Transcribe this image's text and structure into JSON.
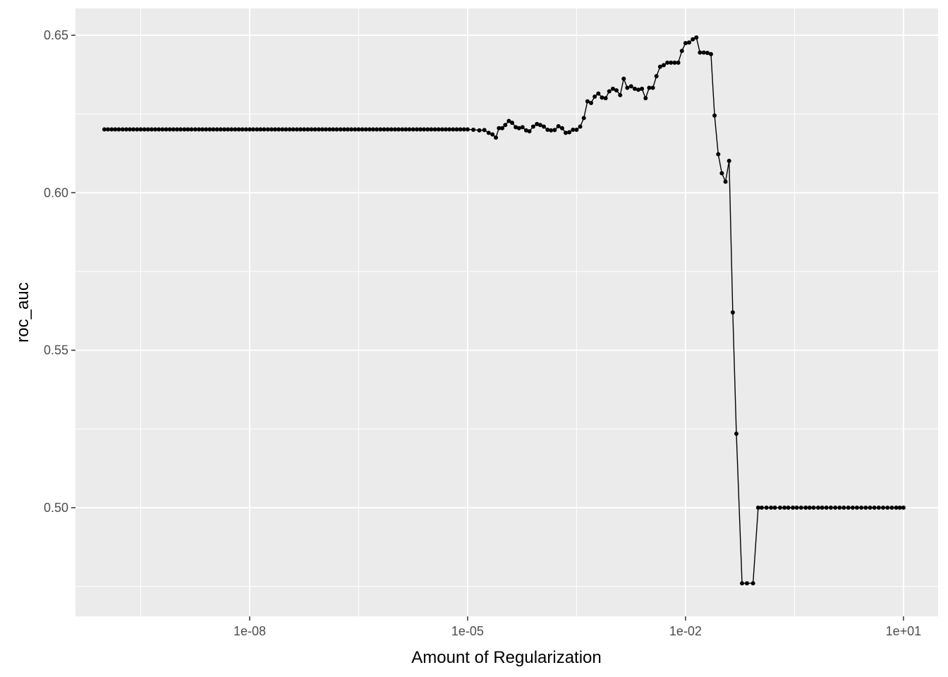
{
  "chart_data": {
    "type": "line",
    "title": "",
    "xlabel": "Amount of Regularization",
    "ylabel": "roc_auc",
    "x_scale": "log10",
    "xlim": [
      4e-11,
      30
    ],
    "ylim": [
      0.4655,
      0.6585
    ],
    "x_ticks": [
      1e-08,
      1e-05,
      0.01,
      10
    ],
    "x_tick_labels": [
      "1e-08",
      "1e-05",
      "1e-02",
      "1e+01"
    ],
    "y_ticks": [
      0.5,
      0.55,
      0.6,
      0.65
    ],
    "y_tick_labels": [
      "0.50",
      "0.55",
      "0.60",
      "0.65"
    ],
    "grid": true,
    "legend": "none",
    "colors": {
      "panel": "#ebebeb",
      "grid": "#ffffff",
      "series": "#000000"
    },
    "series": [
      {
        "points": [
          [
            1e-10,
            0.6201
          ],
          [
            1.12e-10,
            0.6201
          ],
          [
            1.26e-10,
            0.6201
          ],
          [
            1.41e-10,
            0.6201
          ],
          [
            1.58e-10,
            0.6201
          ],
          [
            1.78e-10,
            0.6201
          ],
          [
            2e-10,
            0.6201
          ],
          [
            2.24e-10,
            0.6201
          ],
          [
            2.51e-10,
            0.6201
          ],
          [
            2.82e-10,
            0.6201
          ],
          [
            3.16e-10,
            0.6201
          ],
          [
            3.55e-10,
            0.6201
          ],
          [
            3.98e-10,
            0.6201
          ],
          [
            4.47e-10,
            0.6201
          ],
          [
            5.01e-10,
            0.6201
          ],
          [
            5.62e-10,
            0.6201
          ],
          [
            6.31e-10,
            0.6201
          ],
          [
            7.08e-10,
            0.6201
          ],
          [
            7.94e-10,
            0.6201
          ],
          [
            8.91e-10,
            0.6201
          ],
          [
            1e-09,
            0.6201
          ],
          [
            1.12e-09,
            0.6201
          ],
          [
            1.26e-09,
            0.6201
          ],
          [
            1.41e-09,
            0.6201
          ],
          [
            1.58e-09,
            0.6201
          ],
          [
            1.78e-09,
            0.6201
          ],
          [
            2e-09,
            0.6201
          ],
          [
            2.24e-09,
            0.6201
          ],
          [
            2.51e-09,
            0.6201
          ],
          [
            2.82e-09,
            0.6201
          ],
          [
            3.16e-09,
            0.6201
          ],
          [
            3.55e-09,
            0.6201
          ],
          [
            3.98e-09,
            0.6201
          ],
          [
            4.47e-09,
            0.6201
          ],
          [
            5.01e-09,
            0.6201
          ],
          [
            5.62e-09,
            0.6201
          ],
          [
            6.31e-09,
            0.6201
          ],
          [
            7.08e-09,
            0.6201
          ],
          [
            7.94e-09,
            0.6201
          ],
          [
            8.91e-09,
            0.6201
          ],
          [
            1e-08,
            0.6201
          ],
          [
            1.12e-08,
            0.6201
          ],
          [
            1.26e-08,
            0.6201
          ],
          [
            1.41e-08,
            0.6201
          ],
          [
            1.58e-08,
            0.6201
          ],
          [
            1.78e-08,
            0.6201
          ],
          [
            2e-08,
            0.6201
          ],
          [
            2.24e-08,
            0.6201
          ],
          [
            2.51e-08,
            0.6201
          ],
          [
            2.82e-08,
            0.6201
          ],
          [
            3.16e-08,
            0.6201
          ],
          [
            3.55e-08,
            0.6201
          ],
          [
            3.98e-08,
            0.6201
          ],
          [
            4.47e-08,
            0.6201
          ],
          [
            5.01e-08,
            0.6201
          ],
          [
            5.62e-08,
            0.6201
          ],
          [
            6.31e-08,
            0.6201
          ],
          [
            7.08e-08,
            0.6201
          ],
          [
            7.94e-08,
            0.6201
          ],
          [
            8.91e-08,
            0.6201
          ],
          [
            1e-07,
            0.6201
          ],
          [
            1.12e-07,
            0.6201
          ],
          [
            1.26e-07,
            0.6201
          ],
          [
            1.41e-07,
            0.6201
          ],
          [
            1.58e-07,
            0.6201
          ],
          [
            1.78e-07,
            0.6201
          ],
          [
            2e-07,
            0.6201
          ],
          [
            2.24e-07,
            0.6201
          ],
          [
            2.51e-07,
            0.6201
          ],
          [
            2.82e-07,
            0.6201
          ],
          [
            3.16e-07,
            0.6201
          ],
          [
            3.55e-07,
            0.6201
          ],
          [
            3.98e-07,
            0.6201
          ],
          [
            4.47e-07,
            0.6201
          ],
          [
            5.01e-07,
            0.6201
          ],
          [
            5.62e-07,
            0.6201
          ],
          [
            6.31e-07,
            0.6201
          ],
          [
            7.08e-07,
            0.6201
          ],
          [
            7.94e-07,
            0.6201
          ],
          [
            8.91e-07,
            0.6201
          ],
          [
            1e-06,
            0.6201
          ],
          [
            1.12e-06,
            0.6201
          ],
          [
            1.26e-06,
            0.6201
          ],
          [
            1.41e-06,
            0.6201
          ],
          [
            1.58e-06,
            0.6201
          ],
          [
            1.78e-06,
            0.6201
          ],
          [
            2e-06,
            0.6201
          ],
          [
            2.24e-06,
            0.6201
          ],
          [
            2.51e-06,
            0.6201
          ],
          [
            2.82e-06,
            0.6201
          ],
          [
            3.16e-06,
            0.6201
          ],
          [
            3.55e-06,
            0.6201
          ],
          [
            3.98e-06,
            0.6201
          ],
          [
            4.47e-06,
            0.6201
          ],
          [
            5.01e-06,
            0.6201
          ],
          [
            5.62e-06,
            0.6201
          ],
          [
            6.31e-06,
            0.6201
          ],
          [
            7.08e-06,
            0.6201
          ],
          [
            7.94e-06,
            0.6201
          ],
          [
            8.91e-06,
            0.6201
          ],
          [
            1e-05,
            0.6201
          ],
          [
            1.2e-05,
            0.62
          ],
          [
            1.45e-05,
            0.6198
          ],
          [
            1.7e-05,
            0.6199
          ],
          [
            1.95e-05,
            0.619
          ],
          [
            2.2e-05,
            0.6185
          ],
          [
            2.45e-05,
            0.6175
          ],
          [
            2.7e-05,
            0.6205
          ],
          [
            3e-05,
            0.6205
          ],
          [
            3.3e-05,
            0.6215
          ],
          [
            3.7e-05,
            0.6228
          ],
          [
            4.1e-05,
            0.6222
          ],
          [
            4.6e-05,
            0.6208
          ],
          [
            5.1e-05,
            0.6205
          ],
          [
            5.7e-05,
            0.6208
          ],
          [
            6.4e-05,
            0.6198
          ],
          [
            7.1e-05,
            0.6195
          ],
          [
            8e-05,
            0.621
          ],
          [
            9e-05,
            0.6218
          ],
          [
            0.0001,
            0.6215
          ],
          [
            0.000112,
            0.621
          ],
          [
            0.000126,
            0.62
          ],
          [
            0.000141,
            0.6198
          ],
          [
            0.000158,
            0.6199
          ],
          [
            0.000178,
            0.6211
          ],
          [
            0.0002,
            0.6205
          ],
          [
            0.000224,
            0.619
          ],
          [
            0.000251,
            0.6192
          ],
          [
            0.000282,
            0.62
          ],
          [
            0.000316,
            0.62
          ],
          [
            0.000355,
            0.621
          ],
          [
            0.000398,
            0.6237
          ],
          [
            0.000447,
            0.629
          ],
          [
            0.000501,
            0.6285
          ],
          [
            0.000562,
            0.6305
          ],
          [
            0.000631,
            0.6315
          ],
          [
            0.000708,
            0.6302
          ],
          [
            0.000794,
            0.63
          ],
          [
            0.000891,
            0.6322
          ],
          [
            0.001,
            0.633
          ],
          [
            0.00112,
            0.6325
          ],
          [
            0.00126,
            0.631
          ],
          [
            0.00141,
            0.6362
          ],
          [
            0.00158,
            0.6333
          ],
          [
            0.00178,
            0.6338
          ],
          [
            0.002,
            0.633
          ],
          [
            0.00224,
            0.6327
          ],
          [
            0.00251,
            0.633
          ],
          [
            0.00282,
            0.63
          ],
          [
            0.00316,
            0.6333
          ],
          [
            0.00355,
            0.6333
          ],
          [
            0.00398,
            0.637
          ],
          [
            0.00447,
            0.64
          ],
          [
            0.00501,
            0.6405
          ],
          [
            0.00562,
            0.6413
          ],
          [
            0.00631,
            0.6413
          ],
          [
            0.00708,
            0.6413
          ],
          [
            0.00794,
            0.6413
          ],
          [
            0.00891,
            0.645
          ],
          [
            0.01,
            0.6475
          ],
          [
            0.0112,
            0.6477
          ],
          [
            0.0126,
            0.6487
          ],
          [
            0.0141,
            0.6493
          ],
          [
            0.0158,
            0.6445
          ],
          [
            0.0178,
            0.6445
          ],
          [
            0.02,
            0.6444
          ],
          [
            0.0224,
            0.644
          ],
          [
            0.0251,
            0.6245
          ],
          [
            0.0282,
            0.6122
          ],
          [
            0.0316,
            0.6062
          ],
          [
            0.0355,
            0.6035
          ],
          [
            0.0398,
            0.6101
          ],
          [
            0.0447,
            0.562
          ],
          [
            0.0501,
            0.5235
          ],
          [
            0.06,
            0.476
          ],
          [
            0.07,
            0.476
          ],
          [
            0.085,
            0.476
          ],
          [
            0.1,
            0.5
          ],
          [
            0.112,
            0.5
          ],
          [
            0.13,
            0.5
          ],
          [
            0.15,
            0.5
          ],
          [
            0.17,
            0.5
          ],
          [
            0.2,
            0.5
          ],
          [
            0.23,
            0.5
          ],
          [
            0.26,
            0.5
          ],
          [
            0.3,
            0.5
          ],
          [
            0.34,
            0.5
          ],
          [
            0.39,
            0.5
          ],
          [
            0.45,
            0.5
          ],
          [
            0.51,
            0.5
          ],
          [
            0.58,
            0.5
          ],
          [
            0.67,
            0.5
          ],
          [
            0.76,
            0.5
          ],
          [
            0.87,
            0.5
          ],
          [
            1.0,
            0.5
          ],
          [
            1.15,
            0.5
          ],
          [
            1.32,
            0.5
          ],
          [
            1.51,
            0.5
          ],
          [
            1.74,
            0.5
          ],
          [
            2.0,
            0.5
          ],
          [
            2.29,
            0.5
          ],
          [
            2.63,
            0.5
          ],
          [
            3.02,
            0.5
          ],
          [
            3.47,
            0.5
          ],
          [
            3.98,
            0.5
          ],
          [
            4.57,
            0.5
          ],
          [
            5.25,
            0.5
          ],
          [
            6.03,
            0.5
          ],
          [
            6.92,
            0.5
          ],
          [
            7.94,
            0.5
          ],
          [
            8.91,
            0.5
          ],
          [
            10.0,
            0.5
          ]
        ]
      }
    ]
  }
}
